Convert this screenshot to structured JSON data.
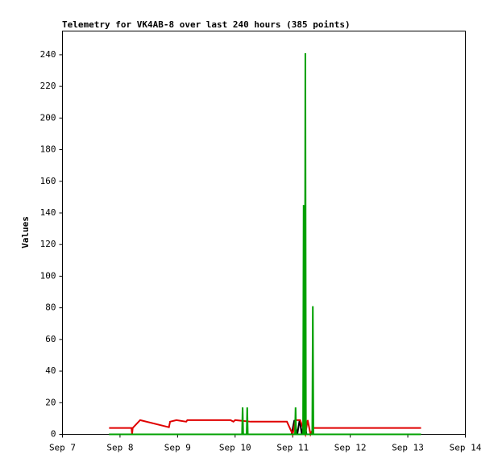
{
  "chart_data": {
    "type": "line",
    "title": "Telemetry for VK4AB-8 over last 240 hours (385 points)",
    "y_label": "Values",
    "xlim": [
      7,
      14
    ],
    "xticks": [
      {
        "value": 7,
        "label": "Sep 7"
      },
      {
        "value": 8,
        "label": "Sep 8"
      },
      {
        "value": 9,
        "label": "Sep 9"
      },
      {
        "value": 10,
        "label": "Sep 10"
      },
      {
        "value": 11,
        "label": "Sep 11"
      },
      {
        "value": 12,
        "label": "Sep 12"
      },
      {
        "value": 13,
        "label": "Sep 13"
      },
      {
        "value": 14,
        "label": "Sep 14"
      }
    ],
    "ylim": [
      0,
      255
    ],
    "yticks": [
      0,
      20,
      40,
      60,
      80,
      100,
      120,
      140,
      160,
      180,
      200,
      220,
      240
    ],
    "series": [
      {
        "name": "black",
        "color": "#000000",
        "x": [
          7.81,
          10.98,
          11.03,
          11.08,
          11.12,
          11.16,
          11.2,
          11.24,
          13.23
        ],
        "values": [
          0,
          0,
          9,
          0,
          9,
          0,
          9,
          0,
          0
        ]
      },
      {
        "name": "red",
        "color": "#e00000",
        "x": [
          7.81,
          8.2,
          8.21,
          8.22,
          8.35,
          8.85,
          8.87,
          8.98,
          9.15,
          9.17,
          9.92,
          9.97,
          10.0,
          10.27,
          10.9,
          11.0,
          11.05,
          11.13,
          11.22,
          11.26,
          11.31,
          11.36,
          13.23
        ],
        "values": [
          4,
          4,
          0,
          4,
          9,
          4.5,
          8,
          9,
          8,
          9,
          9,
          8,
          9,
          8,
          8,
          0,
          9,
          9,
          0,
          9,
          0,
          4,
          4
        ]
      },
      {
        "name": "green",
        "color": "#00a000",
        "x": [
          7.81,
          10.12,
          10.13,
          10.14,
          10.2,
          10.21,
          10.22,
          11.04,
          11.05,
          11.06,
          11.18,
          11.19,
          11.2,
          11.21,
          11.22,
          11.23,
          11.34,
          11.35,
          11.36,
          13.23
        ],
        "values": [
          0,
          0,
          17,
          0,
          0,
          17,
          0,
          0,
          17,
          0,
          0,
          145,
          0,
          0,
          241,
          0,
          0,
          81,
          0,
          0
        ]
      }
    ]
  }
}
